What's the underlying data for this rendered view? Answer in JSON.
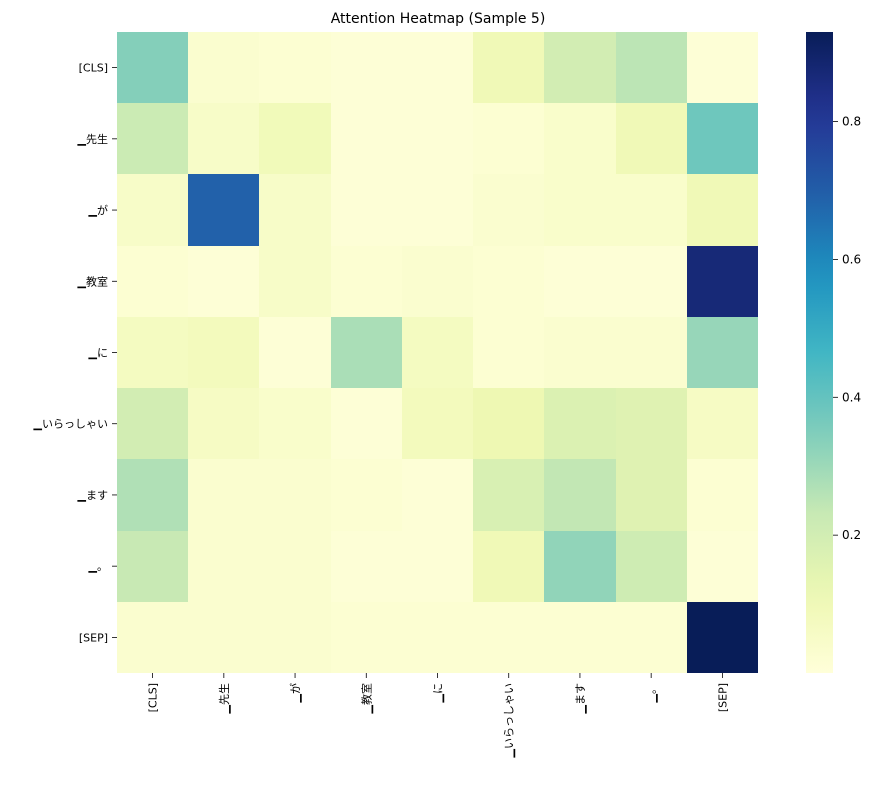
{
  "chart_data": {
    "type": "heatmap",
    "title": "Attention Heatmap (Sample 5)",
    "x_labels": [
      "[CLS]",
      "▁先生",
      "▁が",
      "▁教室",
      "▁に",
      "▁いらっしゃい",
      "▁ます",
      "▁。",
      "[SEP]"
    ],
    "y_labels": [
      "[CLS]",
      "▁先生",
      "▁が",
      "▁教室",
      "▁に",
      "▁いらっしゃい",
      "▁ます",
      "▁。",
      "[SEP]"
    ],
    "values": [
      [
        0.34,
        0.03,
        0.02,
        0.01,
        0.01,
        0.1,
        0.2,
        0.25,
        0.01
      ],
      [
        0.22,
        0.05,
        0.09,
        0.01,
        0.01,
        0.02,
        0.04,
        0.1,
        0.38
      ],
      [
        0.05,
        0.69,
        0.05,
        0.01,
        0.01,
        0.03,
        0.04,
        0.04,
        0.1
      ],
      [
        0.02,
        0.01,
        0.05,
        0.02,
        0.03,
        0.02,
        0.01,
        0.01,
        0.87
      ],
      [
        0.07,
        0.08,
        0.01,
        0.28,
        0.07,
        0.02,
        0.03,
        0.03,
        0.31
      ],
      [
        0.2,
        0.06,
        0.04,
        0.01,
        0.08,
        0.11,
        0.17,
        0.16,
        0.06
      ],
      [
        0.27,
        0.03,
        0.03,
        0.02,
        0.01,
        0.18,
        0.24,
        0.16,
        0.02
      ],
      [
        0.23,
        0.03,
        0.03,
        0.01,
        0.01,
        0.1,
        0.32,
        0.21,
        0.01
      ],
      [
        0.03,
        0.03,
        0.03,
        0.02,
        0.02,
        0.02,
        0.02,
        0.02,
        0.93
      ]
    ],
    "vmin": 0.0,
    "vmax": 0.93,
    "colormap": "YlGnBu",
    "colorbar_ticks": [
      0.2,
      0.4,
      0.6,
      0.8
    ],
    "colorbar_tick_labels": [
      "0.2",
      "0.4",
      "0.6",
      "0.8"
    ],
    "grid": false,
    "legend": "colorbar-right"
  }
}
